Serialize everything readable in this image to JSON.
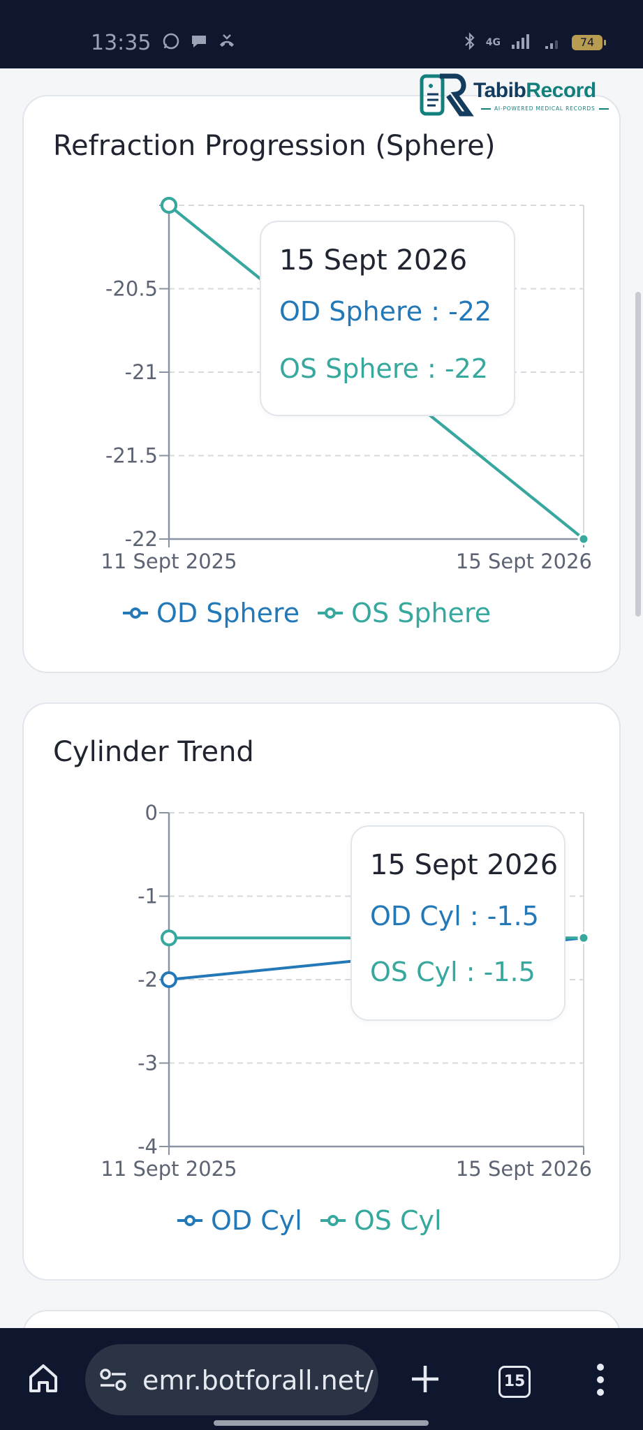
{
  "status_bar": {
    "time": "13:35",
    "network": "4G",
    "battery": "74"
  },
  "logo": {
    "brand_part1": "Tabib",
    "brand_part2": "Record",
    "tagline": "AI-POWERED MEDICAL RECORDS"
  },
  "colors": {
    "od": "#2378b8",
    "os": "#37a89d",
    "grid": "#d6d9de",
    "axis": "#8a93a3"
  },
  "cards": [
    {
      "title": "Refraction Progression (Sphere)",
      "tooltip": {
        "date": "15 Sept 2026",
        "od_text": "OD Sphere : -22",
        "os_text": "OS Sphere : -22"
      },
      "legend": {
        "od": "OD Sphere",
        "os": "OS Sphere"
      }
    },
    {
      "title": "Cylinder Trend",
      "tooltip": {
        "date": "15 Sept 2026",
        "od_text": "OD Cyl : -1.5",
        "os_text": "OS Cyl : -1.5"
      },
      "legend": {
        "od": "OD Cyl",
        "os": "OS Cyl"
      }
    }
  ],
  "chart_data": [
    {
      "type": "line",
      "title": "Refraction Progression (Sphere)",
      "x": [
        "11 Sept 2025",
        "15 Sept 2026"
      ],
      "ylim": [
        -22,
        -20
      ],
      "yticks": [
        "-20.5",
        "-21",
        "-21.5",
        "-22"
      ],
      "grid": true,
      "series": [
        {
          "name": "OD Sphere",
          "values": [
            -20,
            -22
          ]
        },
        {
          "name": "OS Sphere",
          "values": [
            -20,
            -22
          ]
        }
      ]
    },
    {
      "type": "line",
      "title": "Cylinder Trend",
      "x": [
        "11 Sept 2025",
        "15 Sept 2026"
      ],
      "ylim": [
        -4,
        0
      ],
      "yticks": [
        "0",
        "-1",
        "-2",
        "-3",
        "-4"
      ],
      "grid": true,
      "series": [
        {
          "name": "OD Cyl",
          "values": [
            -2,
            -1.5
          ]
        },
        {
          "name": "OS Cyl",
          "values": [
            -1.5,
            -1.5
          ]
        }
      ]
    }
  ],
  "browser": {
    "url": "emr.botforall.net/",
    "tab_count": "15"
  }
}
